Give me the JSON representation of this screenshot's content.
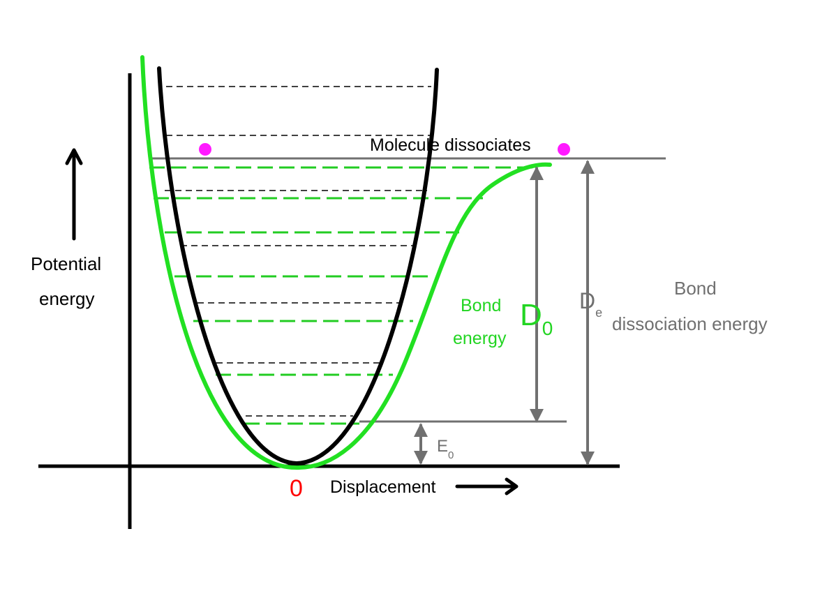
{
  "labels": {
    "y_axis_line1": "Potential",
    "y_axis_line2": "energy",
    "x_axis": "Displacement",
    "origin": "0",
    "dissociation": "Molecule dissociates",
    "bond_energy_line1": "Bond",
    "bond_energy_line2": "energy",
    "d0_main": "D",
    "d0_sub": "0",
    "de_main": "D",
    "de_sub": "e",
    "bde_line1": "Bond",
    "bde_line2": "dissociation energy",
    "e0_main": "E",
    "e0_sub": "0"
  },
  "colors": {
    "harmonic_curve": "#000000",
    "morse_curve": "#22e022",
    "morse_levels": "#22cc22",
    "harmonic_levels": "#000000",
    "reference_lines": "#707070",
    "dissociation_dots": "#ff1aff",
    "origin_label": "#ff0000"
  },
  "icons": [
    "up-arrow-icon",
    "right-arrow-icon",
    "double-arrow-icon"
  ]
}
